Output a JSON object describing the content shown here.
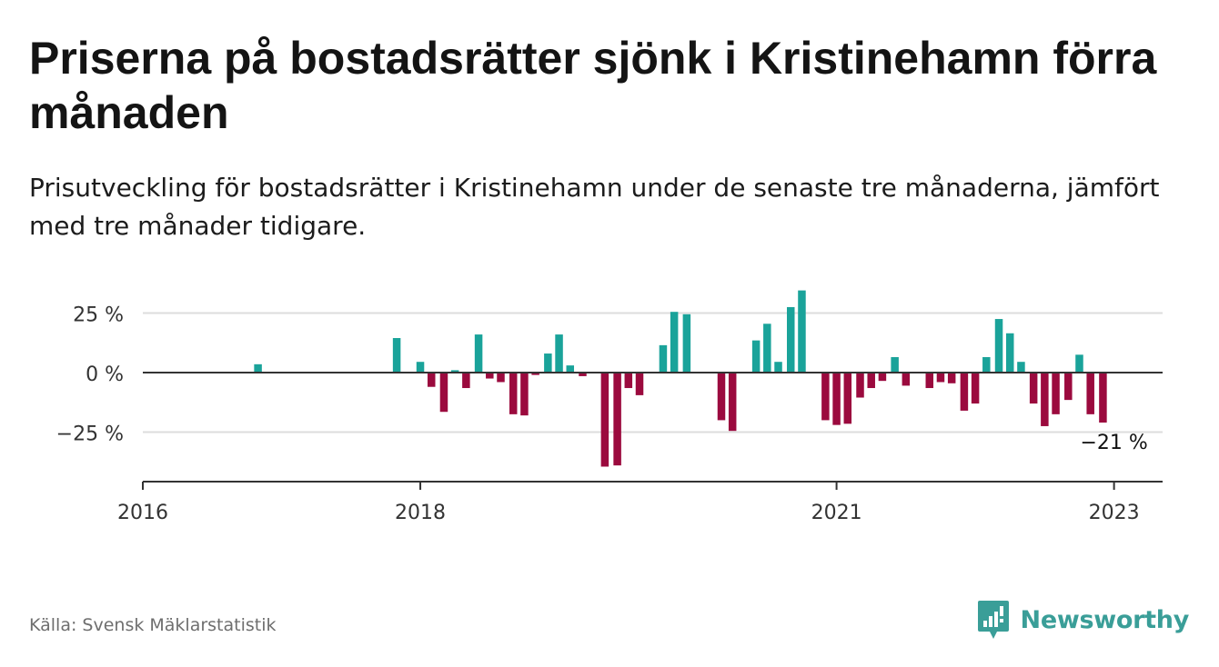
{
  "title": "Priserna på bostadsrätter sjönk i Kristinehamn förra månaden",
  "subtitle": "Prisutveckling för bostadsrätter i Kristinehamn under de senaste tre månaderna, jämfört med tre månader tidigare.",
  "source": "Källa: Svensk Mäklarstatistik",
  "brand": "Newsworthy",
  "colors": {
    "positive": "#1aa39a",
    "negative": "#9b0a3e",
    "grid": "#dddddd",
    "axis": "#333333"
  },
  "chart_data": {
    "type": "bar",
    "ylim": [
      -45,
      37
    ],
    "yticks": [
      25,
      0,
      -25
    ],
    "ytick_labels": [
      "25 %",
      "0 %",
      "−25 %"
    ],
    "xlim": [
      2016.0,
      2023.35
    ],
    "xticks": [
      2016,
      2018,
      2021,
      2023
    ],
    "xtick_labels": [
      "2016",
      "2018",
      "2021",
      "2023"
    ],
    "annotation": {
      "text": "−21 %",
      "x": 2023.0
    },
    "x": [
      2016.83,
      2017.83,
      2018.0,
      2018.08,
      2018.17,
      2018.25,
      2018.33,
      2018.42,
      2018.5,
      2018.58,
      2018.67,
      2018.75,
      2018.83,
      2018.92,
      2019.0,
      2019.08,
      2019.17,
      2019.33,
      2019.42,
      2019.5,
      2019.58,
      2019.75,
      2019.83,
      2019.92,
      2020.17,
      2020.25,
      2020.42,
      2020.5,
      2020.58,
      2020.67,
      2020.75,
      2020.92,
      2021.0,
      2021.08,
      2021.17,
      2021.25,
      2021.33,
      2021.42,
      2021.5,
      2021.67,
      2021.75,
      2021.83,
      2021.92,
      2022.0,
      2022.08,
      2022.17,
      2022.25,
      2022.33,
      2022.42,
      2022.5,
      2022.58,
      2022.67,
      2022.75,
      2022.83,
      2022.92,
      2023.0
    ],
    "values": [
      3.5,
      14.5,
      4.5,
      -6,
      -16.5,
      1,
      -6.5,
      16,
      -2.5,
      -4,
      -17.5,
      -18,
      -1,
      8,
      16,
      3,
      -1.5,
      -39.5,
      -39,
      -6.5,
      -9.5,
      11.5,
      25.5,
      24.5,
      -20,
      -24.5,
      13.5,
      20.5,
      4.5,
      27.5,
      34.5,
      -20,
      -22,
      -21.5,
      -10.5,
      -6.5,
      -3.5,
      6.5,
      -5.5,
      -6.5,
      -4,
      -4.5,
      -16,
      -13,
      6.5,
      22.5,
      16.5,
      4.5,
      -13,
      -22.5,
      -17.5,
      -11.5,
      7.5,
      -17.5,
      -21,
      0
    ]
  }
}
